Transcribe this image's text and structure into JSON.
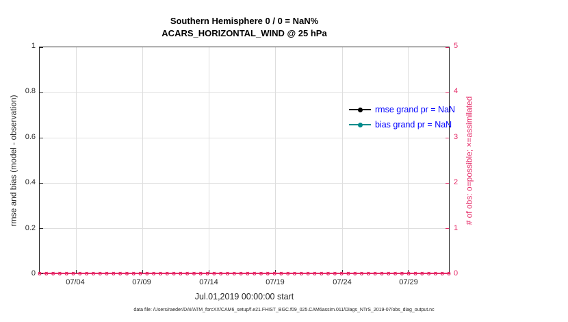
{
  "title": {
    "line1": "Southern Hemisphere 0 / 0 = NaN%",
    "line2": "ACARS_HORIZONTAL_WIND @ 25 hPa"
  },
  "chart_data": {
    "type": "line",
    "title": "Southern Hemisphere 0 / 0 = NaN%",
    "subtitle": "ACARS_HORIZONTAL_WIND @ 25 hPa",
    "x_axis": {
      "label": "Jul.01,2019 00:00:00 start",
      "ticks": [
        "07/04",
        "07/09",
        "07/14",
        "07/19",
        "07/24",
        "07/29"
      ]
    },
    "left_axis": {
      "label": "rmse and bias (model - observation)",
      "range": [
        0,
        1
      ],
      "ticks": [
        "0",
        "0.2",
        "0.4",
        "0.6",
        "0.8",
        "1"
      ]
    },
    "right_axis": {
      "label": "# of obs: o=possible; ×=assimilated",
      "range": [
        0,
        5
      ],
      "ticks": [
        "0",
        "1",
        "2",
        "3",
        "4",
        "5"
      ]
    },
    "grid": true,
    "legend_position": "top-right-inside",
    "series": [
      {
        "name": "rmse grand pr = NaN",
        "color": "#000000",
        "marker": "filled-circle",
        "values": "NaN - no curve plotted"
      },
      {
        "name": "bias grand pr = NaN",
        "color": "#008b8b",
        "marker": "filled-circle",
        "values": "NaN - no curve plotted"
      },
      {
        "name": "possible obs (o)",
        "color": "#e52b68",
        "marker": "o",
        "constant_value": 0
      },
      {
        "name": "assimilated obs (x)",
        "color": "#e52b68",
        "marker": "×",
        "constant_value": 0
      }
    ]
  },
  "legend": {
    "entries": [
      {
        "label": "rmse grand pr = NaN",
        "color": "#000000"
      },
      {
        "label": "bias grand pr = NaN",
        "color": "#008b8b"
      }
    ],
    "text_color": "#0000ff"
  },
  "footer": {
    "text": "data file: /Users/raeder/DAI/ATM_forcXX/CAM6_setup/f.e21.FHIST_BGC.f09_025.CAM6assim.011/Diags_NTrS_2019-07/obs_diag_output.nc"
  },
  "colors": {
    "right_axis_pink": "#e52b68",
    "legend_text_blue": "#0000ff",
    "bias_teal": "#008b8b",
    "rmse_black": "#000000",
    "grid_gray": "#dedede",
    "axis_box": "#262626"
  },
  "obs_markers": {
    "o": "o",
    "x": "×",
    "count": 62
  }
}
